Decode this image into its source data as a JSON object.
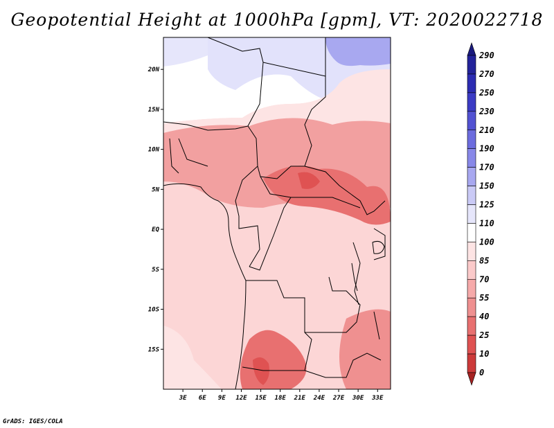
{
  "title": "Geopotential Height at 1000hPa [gpm], VT: 2020022718",
  "credit": "GrADS: IGES/COLA",
  "map": {
    "lat_range": [
      -20,
      24
    ],
    "lon_range": [
      0,
      35
    ],
    "lat_ticks": [
      {
        "value": 20,
        "label": "20N"
      },
      {
        "value": 15,
        "label": "15N"
      },
      {
        "value": 10,
        "label": "10N"
      },
      {
        "value": 5,
        "label": "5N"
      },
      {
        "value": 0,
        "label": "EQ"
      },
      {
        "value": -5,
        "label": "5S"
      },
      {
        "value": -10,
        "label": "10S"
      },
      {
        "value": -15,
        "label": "15S"
      }
    ],
    "lon_ticks": [
      {
        "value": 3,
        "label": "3E"
      },
      {
        "value": 6,
        "label": "6E"
      },
      {
        "value": 9,
        "label": "9E"
      },
      {
        "value": 12,
        "label": "12E"
      },
      {
        "value": 15,
        "label": "15E"
      },
      {
        "value": 18,
        "label": "18E"
      },
      {
        "value": 21,
        "label": "21E"
      },
      {
        "value": 24,
        "label": "24E"
      },
      {
        "value": 27,
        "label": "27E"
      },
      {
        "value": 30,
        "label": "30E"
      },
      {
        "value": 33,
        "label": "33E"
      }
    ]
  },
  "colorbar": {
    "levels": [
      {
        "label": "290",
        "color": "#1a1a7e"
      },
      {
        "label": "270",
        "color": "#23239a"
      },
      {
        "label": "250",
        "color": "#2c2cb2"
      },
      {
        "label": "230",
        "color": "#3b3bc4"
      },
      {
        "label": "210",
        "color": "#5252d2"
      },
      {
        "label": "190",
        "color": "#6c6cde"
      },
      {
        "label": "170",
        "color": "#8888e8"
      },
      {
        "label": "150",
        "color": "#a8a8f0"
      },
      {
        "label": "125",
        "color": "#cacaf6"
      },
      {
        "label": "110",
        "color": "#e6e6fb"
      },
      {
        "label": "100",
        "color": "#ffffff"
      },
      {
        "label": "85",
        "color": "#fde4e4"
      },
      {
        "label": "70",
        "color": "#fbcaca"
      },
      {
        "label": "55",
        "color": "#f6aaaa"
      },
      {
        "label": "40",
        "color": "#ef9090"
      },
      {
        "label": "25",
        "color": "#e87070"
      },
      {
        "label": "10",
        "color": "#df5252"
      },
      {
        "label": "0",
        "color": "#cc3a3a"
      }
    ],
    "bottom_color": "#a52222"
  }
}
